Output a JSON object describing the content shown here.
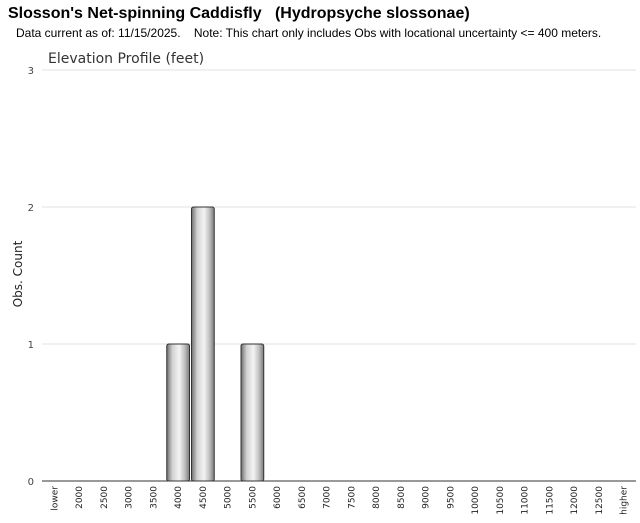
{
  "header": {
    "title": "Slosson's Net-spinning Caddisfly   (Hydropsyche slossonae)",
    "note": "Data current as of: 11/15/2025.    Note: This chart only includes Obs with locational uncertainty <= 400 meters."
  },
  "chart_data": {
    "type": "bar",
    "title": "Elevation Profile (feet)",
    "xlabel": "",
    "ylabel": "Obs. Count",
    "categories": [
      "lower",
      "2000",
      "2500",
      "3000",
      "3500",
      "4000",
      "4500",
      "5000",
      "5500",
      "6000",
      "6500",
      "7000",
      "7500",
      "8000",
      "8500",
      "9000",
      "9500",
      "10000",
      "10500",
      "11000",
      "11500",
      "12000",
      "12500",
      "higher"
    ],
    "values": [
      0,
      0,
      0,
      0,
      0,
      1,
      2,
      0,
      1,
      0,
      0,
      0,
      0,
      0,
      0,
      0,
      0,
      0,
      0,
      0,
      0,
      0,
      0,
      0
    ],
    "y_ticks": [
      0,
      1,
      2,
      3
    ],
    "ylim": [
      0,
      3
    ],
    "grid": true,
    "legend": "none",
    "bar_color": "#b0b0b0"
  }
}
